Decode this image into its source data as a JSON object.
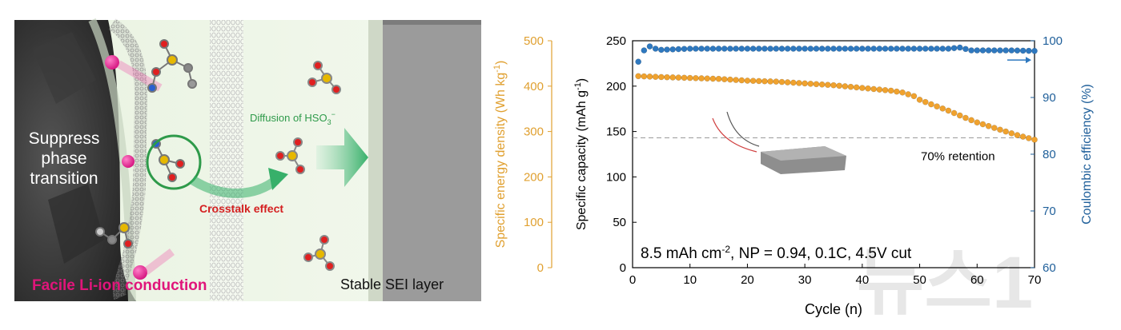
{
  "schematic": {
    "label_suppress": [
      "Suppress",
      "phase",
      "transition"
    ],
    "label_diffusion": "Diffusion of HSO",
    "label_diffusion_sub": "3",
    "label_diffusion_sup": "−",
    "label_crosstalk": "Crosstalk effect",
    "label_liion": "Facile Li-ion conduction",
    "label_sei": "Stable SEI layer"
  },
  "chart_data": {
    "type": "scatter",
    "x_axis": {
      "label": "Cycle (n)",
      "range": [
        0,
        70
      ],
      "ticks": [
        0,
        10,
        20,
        30,
        40,
        50,
        60,
        70
      ]
    },
    "y_left": {
      "label": "Specific capacity (mAh g",
      "label_sup": "-1",
      "label_end": ")",
      "range": [
        0,
        250
      ],
      "ticks": [
        0,
        50,
        100,
        150,
        200,
        250
      ]
    },
    "y_right": {
      "label": "Coulombic efficiency (%)",
      "range": [
        60,
        100
      ],
      "ticks": [
        60,
        70,
        80,
        90,
        100
      ]
    },
    "y_energy": {
      "label": "Specific energy density (Wh kg",
      "label_sup": "-1",
      "label_end": ")",
      "range": [
        0,
        500
      ],
      "ticks": [
        0,
        100,
        200,
        300,
        400,
        500
      ]
    },
    "series": [
      {
        "name": "Specific capacity",
        "axis": "left",
        "color": "#f0a22e",
        "points": [
          [
            1,
            211
          ],
          [
            5,
            210
          ],
          [
            10,
            209
          ],
          [
            15,
            208
          ],
          [
            20,
            206
          ],
          [
            25,
            205
          ],
          [
            30,
            203
          ],
          [
            35,
            201
          ],
          [
            40,
            198
          ],
          [
            45,
            195
          ],
          [
            47,
            193
          ],
          [
            49,
            189
          ],
          [
            50,
            185
          ],
          [
            52,
            180
          ],
          [
            55,
            173
          ],
          [
            58,
            165
          ],
          [
            60,
            160
          ],
          [
            63,
            154
          ],
          [
            65,
            150
          ],
          [
            67,
            146
          ],
          [
            70,
            141
          ]
        ]
      },
      {
        "name": "Coulombic efficiency",
        "axis": "right",
        "color": "#2e78bf",
        "points": [
          [
            1,
            96.3
          ],
          [
            2,
            98.3
          ],
          [
            3,
            99.0
          ],
          [
            4,
            98.6
          ],
          [
            5,
            98.4
          ],
          [
            10,
            98.6
          ],
          [
            20,
            98.6
          ],
          [
            30,
            98.6
          ],
          [
            40,
            98.6
          ],
          [
            50,
            98.6
          ],
          [
            55,
            98.6
          ],
          [
            57,
            98.8
          ],
          [
            59,
            98.3
          ],
          [
            62,
            98.3
          ],
          [
            66,
            98.3
          ],
          [
            70,
            98.2
          ]
        ]
      }
    ],
    "reference_line": {
      "y": 143,
      "label": "70% retention"
    },
    "annotation": {
      "text_main": "8.5 mAh cm",
      "text_sup": "-2",
      "text_rest": ", NP = 0.94, 0.1C, 4.5V cut"
    },
    "watermark": "뉴스1"
  }
}
